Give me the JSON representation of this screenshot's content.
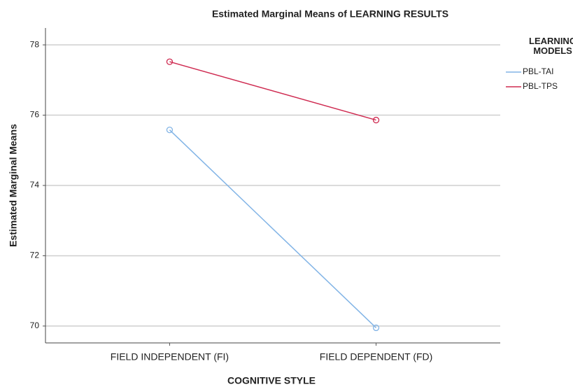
{
  "chart_data": {
    "type": "line",
    "title": "Estimated Marginal Means of LEARNING RESULTS",
    "x_label": "COGNITIVE STYLE",
    "y_label": "Estimated Marginal Means",
    "legend_title": "LEARNING MODELS",
    "categories": [
      "FIELD INDEPENDENT (FI)",
      "FIELD DEPENDENT (FD)"
    ],
    "series": [
      {
        "name": "PBL-TAI",
        "color": "#82b4e6",
        "values": [
          75.58,
          69.95
        ]
      },
      {
        "name": "PBL-TPS",
        "color": "#cf2b51",
        "values": [
          77.52,
          75.86
        ]
      }
    ],
    "ylim": [
      69.52,
      78.48
    ],
    "yticks": [
      70,
      72,
      74,
      76,
      78
    ],
    "grid": true,
    "legend": "right"
  }
}
